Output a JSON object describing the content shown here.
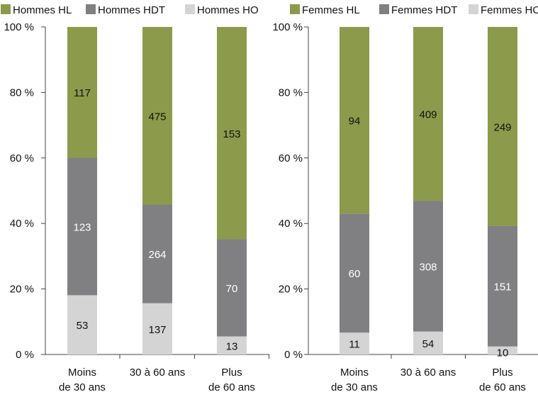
{
  "chart_data": [
    {
      "type": "bar",
      "stacked": "percent",
      "categories": [
        [
          "Moins",
          "de 30 ans"
        ],
        [
          "30 à 60 ans"
        ],
        [
          "Plus",
          "de 60 ans"
        ]
      ],
      "series": [
        {
          "name": "Hommes HL",
          "values": [
            117,
            475,
            153
          ],
          "color": "#8c9a4b",
          "label_color": "#111111"
        },
        {
          "name": "Hommes HDT",
          "values": [
            123,
            264,
            70
          ],
          "color": "#808083",
          "label_color": "#ffffff"
        },
        {
          "name": "Hommes HO",
          "values": [
            53,
            137,
            13
          ],
          "color": "#d4d4d5",
          "label_color": "#111111"
        }
      ],
      "stack_order": [
        "Hommes HO",
        "Hommes HDT",
        "Hommes HL"
      ],
      "y_ticks": [
        "0 %",
        "20 %",
        "40 %",
        "60 %",
        "80 %",
        "100 %"
      ],
      "ylim": [
        0,
        100
      ],
      "legend_position": "top",
      "grid": false
    },
    {
      "type": "bar",
      "stacked": "percent",
      "categories": [
        [
          "Moins",
          "de 30 ans"
        ],
        [
          "30 à 60 ans"
        ],
        [
          "Plus",
          "de 60 ans"
        ]
      ],
      "series": [
        {
          "name": "Femmes HL",
          "values": [
            94,
            409,
            249
          ],
          "color": "#8c9a4b",
          "label_color": "#111111"
        },
        {
          "name": "Femmes HDT",
          "values": [
            60,
            308,
            151
          ],
          "color": "#808083",
          "label_color": "#ffffff"
        },
        {
          "name": "Femmes HO",
          "values": [
            11,
            54,
            10
          ],
          "color": "#d4d4d5",
          "label_color": "#111111"
        }
      ],
      "stack_order": [
        "Femmes HO",
        "Femmes HDT",
        "Femmes HL"
      ],
      "y_ticks": [
        "0 %",
        "20 %",
        "40 %",
        "60 %",
        "80 %",
        "100 %"
      ],
      "ylim": [
        0,
        100
      ],
      "legend_position": "top",
      "grid": false
    }
  ]
}
